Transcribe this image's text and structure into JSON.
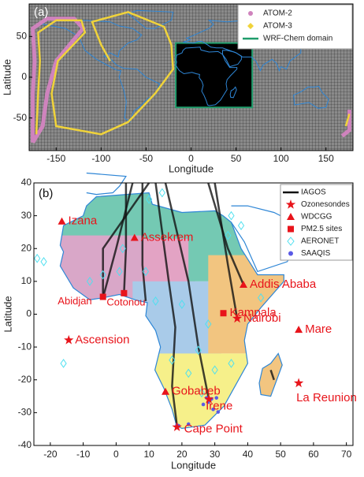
{
  "chart_data": [
    {
      "type": "map",
      "panel_label": "(a)",
      "xlabel": "Longitude",
      "ylabel": "Latitude",
      "xlim": [
        -180,
        180
      ],
      "ylim": [
        -90,
        90
      ],
      "xticks": [
        -150,
        -100,
        -50,
        0,
        50,
        100,
        150
      ],
      "yticks": [
        -50,
        0,
        50
      ],
      "legend": [
        {
          "name": "ATOM-2",
          "color": "#cf83bd",
          "marker": "dot"
        },
        {
          "name": "ATOM-3",
          "color": "#f0d33a",
          "marker": "diamond"
        },
        {
          "name": "WRF-Chem domain",
          "color": "#1f9c6b",
          "marker": "line"
        }
      ]
    },
    {
      "type": "map",
      "panel_label": "(b)",
      "xlabel": "Longitude",
      "ylabel": "Latitude",
      "xlim": [
        -25,
        72
      ],
      "ylim": [
        -40,
        40
      ],
      "xticks": [
        -20,
        -10,
        0,
        10,
        20,
        30,
        40,
        50,
        60,
        70
      ],
      "yticks": [
        -40,
        -30,
        -20,
        -10,
        0,
        10,
        20,
        30,
        40
      ],
      "legend": [
        {
          "name": "IAGOS",
          "color": "#111111",
          "marker": "line"
        },
        {
          "name": "Ozonesondes",
          "color": "#e8141b",
          "marker": "star"
        },
        {
          "name": "WDCGG",
          "color": "#e8141b",
          "marker": "triangle"
        },
        {
          "name": "PM2.5 sites",
          "color": "#e8141b",
          "marker": "square"
        },
        {
          "name": "AERONET",
          "color": "#4fe0f0",
          "marker": "diamond"
        },
        {
          "name": "SAAQIS",
          "color": "#5a5ae6",
          "marker": "dot"
        }
      ],
      "sites": [
        {
          "name": "Izana",
          "lon": -16.5,
          "lat": 28.3,
          "marker": "triangle"
        },
        {
          "name": "Assekrem",
          "lon": 5.6,
          "lat": 23.3,
          "marker": "triangle"
        },
        {
          "name": "Abidjan",
          "lon": -4,
          "lat": 5.3,
          "marker": "square"
        },
        {
          "name": "Cotonou",
          "lon": 2.4,
          "lat": 6.4,
          "marker": "square"
        },
        {
          "name": "Addis Ababa",
          "lon": 38.7,
          "lat": 9,
          "marker": "triangle"
        },
        {
          "name": "Kampala",
          "lon": 32.6,
          "lat": 0.3,
          "marker": "square"
        },
        {
          "name": "Nairobi",
          "lon": 36.8,
          "lat": -1.3,
          "marker": "star"
        },
        {
          "name": "Mare",
          "lon": 55.5,
          "lat": -4.7,
          "marker": "triangle"
        },
        {
          "name": "Ascension",
          "lon": -14.4,
          "lat": -7.9,
          "marker": "star"
        },
        {
          "name": "La Reunion",
          "lon": 55.5,
          "lat": -21,
          "marker": "star"
        },
        {
          "name": "Gobabeb",
          "lon": 15,
          "lat": -23.6,
          "marker": "triangle"
        },
        {
          "name": "Irene",
          "lon": 28.2,
          "lat": -25.9,
          "marker": "star"
        },
        {
          "name": "Cape Point",
          "lon": 18.5,
          "lat": -34.4,
          "marker": "star"
        }
      ]
    }
  ]
}
